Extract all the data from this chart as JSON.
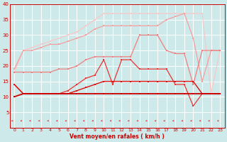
{
  "x": [
    0,
    1,
    2,
    3,
    4,
    5,
    6,
    7,
    8,
    9,
    10,
    11,
    12,
    13,
    14,
    15,
    16,
    17,
    18,
    19,
    20,
    21,
    22,
    23
  ],
  "line_darkred": [
    10,
    11,
    11,
    11,
    11,
    11,
    11,
    11,
    11,
    11,
    11,
    11,
    11,
    11,
    11,
    11,
    11,
    11,
    11,
    11,
    11,
    11,
    11,
    11
  ],
  "line_red": [
    14,
    11,
    11,
    11,
    11,
    11,
    11,
    12,
    13,
    14,
    15,
    15,
    15,
    15,
    15,
    15,
    15,
    15,
    15,
    15,
    15,
    11,
    11,
    11
  ],
  "line_medred": [
    14,
    11,
    11,
    11,
    11,
    11,
    12,
    14,
    16,
    17,
    22,
    14,
    22,
    22,
    19,
    19,
    19,
    19,
    14,
    14,
    7,
    11,
    11,
    11
  ],
  "line_salmon1": [
    18,
    18,
    18,
    18,
    18,
    19,
    19,
    20,
    22,
    23,
    23,
    23,
    23,
    23,
    30,
    30,
    30,
    25,
    24,
    24,
    14,
    25,
    25,
    25
  ],
  "line_salmon2": [
    19,
    25,
    25,
    26,
    27,
    27,
    28,
    29,
    30,
    32,
    33,
    33,
    33,
    33,
    33,
    33,
    33,
    35,
    36,
    37,
    29,
    15,
    25,
    25
  ],
  "line_lightest": [
    18,
    25,
    26,
    27,
    28,
    29,
    30,
    31,
    33,
    35,
    37,
    37,
    37,
    37,
    37,
    37,
    37,
    37,
    37,
    37,
    37,
    37,
    11,
    25
  ],
  "xlabel": "Vent moyen/en rafales ( km/h )",
  "ylim": [
    0,
    40
  ],
  "xlim": [
    -0.5,
    23.5
  ],
  "yticks": [
    5,
    10,
    15,
    20,
    25,
    30,
    35,
    40
  ],
  "xticks": [
    0,
    1,
    2,
    3,
    4,
    5,
    6,
    7,
    8,
    9,
    10,
    11,
    12,
    13,
    14,
    15,
    16,
    17,
    18,
    19,
    20,
    21,
    22,
    23
  ],
  "bg_color": "#cde9e9",
  "grid_color": "#b0d8d8",
  "c1": "#cc0000",
  "c2": "#dd1111",
  "c3": "#ee3333",
  "c4": "#f08080",
  "c5": "#f4a0a0",
  "c6": "#f9c8c8"
}
